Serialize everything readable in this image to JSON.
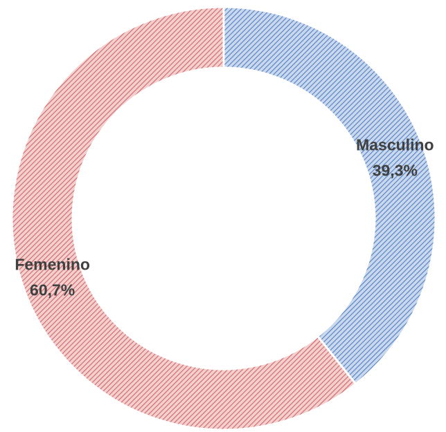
{
  "chart_data": {
    "type": "donut",
    "categories": [
      "Masculino",
      "Femenino"
    ],
    "values": [
      39.3,
      60.7
    ],
    "value_labels": [
      "39,3%",
      "60,7%"
    ],
    "colors": [
      "#4f7fc4",
      "#d46464"
    ]
  }
}
